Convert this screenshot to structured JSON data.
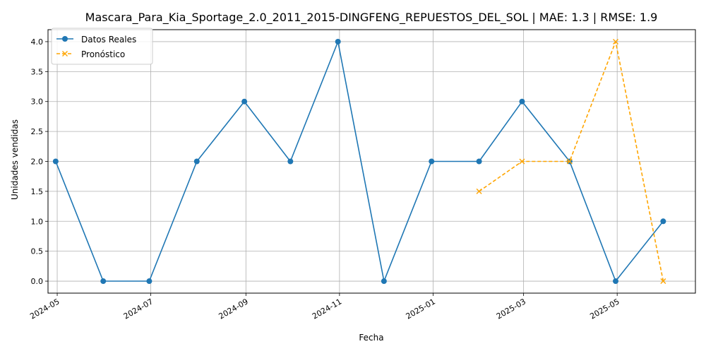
{
  "chart_data": {
    "type": "line",
    "title": "Mascara_Para_Kia_Sportage_2.0_2011_2015-DINGFENG_REPUESTOS_DEL_SOL | MAE: 1.3 | RMSE: 1.9",
    "xlabel": "Fecha",
    "ylabel": "Unidades vendidas",
    "x_ticks": [
      "2024-05",
      "2024-07",
      "2024-09",
      "2024-11",
      "2025-01",
      "2025-03",
      "2025-05"
    ],
    "y_ticks": [
      "0.0",
      "0.5",
      "1.0",
      "1.5",
      "2.0",
      "2.5",
      "3.0",
      "3.5",
      "4.0"
    ],
    "xlim": [
      "2024-04-25",
      "2025-06-21"
    ],
    "ylim": [
      -0.2,
      4.2
    ],
    "grid": true,
    "legend_position": "top-left",
    "series": [
      {
        "name": "Datos Reales",
        "color": "#1f77b4",
        "line_style": "solid",
        "marker": "circle",
        "x": [
          "2024-04-30",
          "2024-05-31",
          "2024-06-30",
          "2024-07-31",
          "2024-08-31",
          "2024-09-30",
          "2024-10-31",
          "2024-11-30",
          "2024-12-31",
          "2025-01-31",
          "2025-02-28",
          "2025-03-31",
          "2025-04-30",
          "2025-05-31"
        ],
        "values": [
          2,
          0,
          0,
          2,
          3,
          2,
          4,
          0,
          2,
          2,
          3,
          2,
          0,
          1
        ]
      },
      {
        "name": "Pronóstico",
        "color": "#ffa500",
        "line_style": "dashed",
        "marker": "x",
        "x": [
          "2025-01-31",
          "2025-02-28",
          "2025-03-31",
          "2025-04-30",
          "2025-05-31"
        ],
        "values": [
          1.5,
          2,
          2,
          4,
          0
        ]
      }
    ]
  }
}
